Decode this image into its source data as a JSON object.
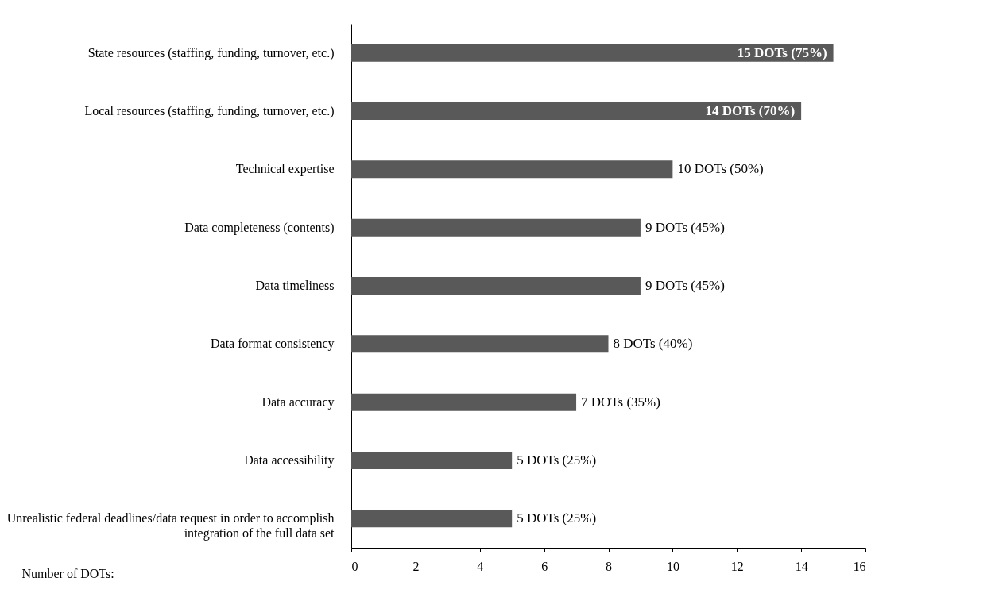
{
  "chart_data": {
    "type": "bar",
    "orientation": "horizontal",
    "xlabel": "Number of DOTs:",
    "categories": [
      "State resources (staffing, funding, turnover, etc.)",
      "Local resources (staffing, funding, turnover, etc.)",
      "Technical expertise",
      "Data completeness (contents)",
      "Data timeliness",
      "Data format consistency",
      "Data accuracy",
      "Data accessibility",
      "Unrealistic federal deadlines/data request in order to accomplish integration of the full data set"
    ],
    "values": [
      15,
      14,
      10,
      9,
      9,
      8,
      7,
      5,
      5
    ],
    "value_labels": [
      "15 DOTs (75%)",
      "14 DOTs (70%)",
      "10 DOTs (50%)",
      "9 DOTs (45%)",
      "9 DOTs (45%)",
      "8 DOTs (40%)",
      "7 DOTs (35%)",
      "5 DOTs (25%)",
      "5 DOTs (25%)"
    ],
    "color": "#595959",
    "xlim": [
      0,
      16
    ],
    "xticks": [
      0,
      2,
      4,
      6,
      8,
      10,
      12,
      14,
      16
    ],
    "grid": false
  }
}
